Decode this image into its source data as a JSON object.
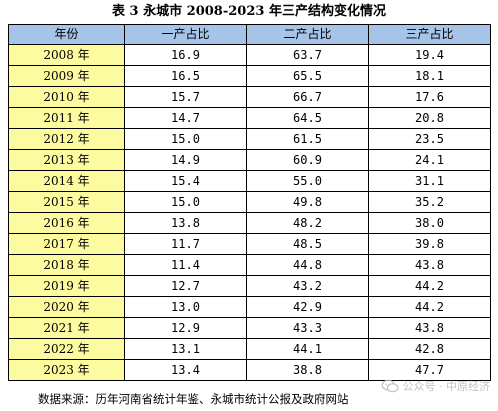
{
  "title": "表 3  永城市 2008-2023 年三产结构变化情况",
  "table": {
    "headers": [
      "年份",
      "一产占比",
      "二产占比",
      "三产占比"
    ],
    "rows": [
      [
        "2008 年",
        "16.9",
        "63.7",
        "19.4"
      ],
      [
        "2009 年",
        "16.5",
        "65.5",
        "18.1"
      ],
      [
        "2010 年",
        "15.7",
        "66.7",
        "17.6"
      ],
      [
        "2011 年",
        "14.7",
        "64.5",
        "20.8"
      ],
      [
        "2012 年",
        "15.0",
        "61.5",
        "23.5"
      ],
      [
        "2013 年",
        "14.9",
        "60.9",
        "24.1"
      ],
      [
        "2014 年",
        "15.4",
        "55.0",
        "31.1"
      ],
      [
        "2015 年",
        "15.0",
        "49.8",
        "35.2"
      ],
      [
        "2016 年",
        "13.8",
        "48.2",
        "38.0"
      ],
      [
        "2017 年",
        "11.7",
        "48.5",
        "39.8"
      ],
      [
        "2018 年",
        "11.4",
        "44.8",
        "43.8"
      ],
      [
        "2019 年",
        "12.7",
        "43.2",
        "44.2"
      ],
      [
        "2020 年",
        "13.0",
        "42.9",
        "44.2"
      ],
      [
        "2021 年",
        "12.9",
        "43.3",
        "43.8"
      ],
      [
        "2022 年",
        "13.1",
        "44.1",
        "42.8"
      ],
      [
        "2023 年",
        "13.4",
        "38.8",
        "47.7"
      ]
    ]
  },
  "source": "数据来源：历年河南省统计年鉴、永城市统计公报及政府网站",
  "watermark": {
    "text": "公众号 · 中原经济",
    "icon": "wechat-icon"
  },
  "colors": {
    "header_bg": "#a6c4e8",
    "year_bg": "#fdfba0"
  }
}
